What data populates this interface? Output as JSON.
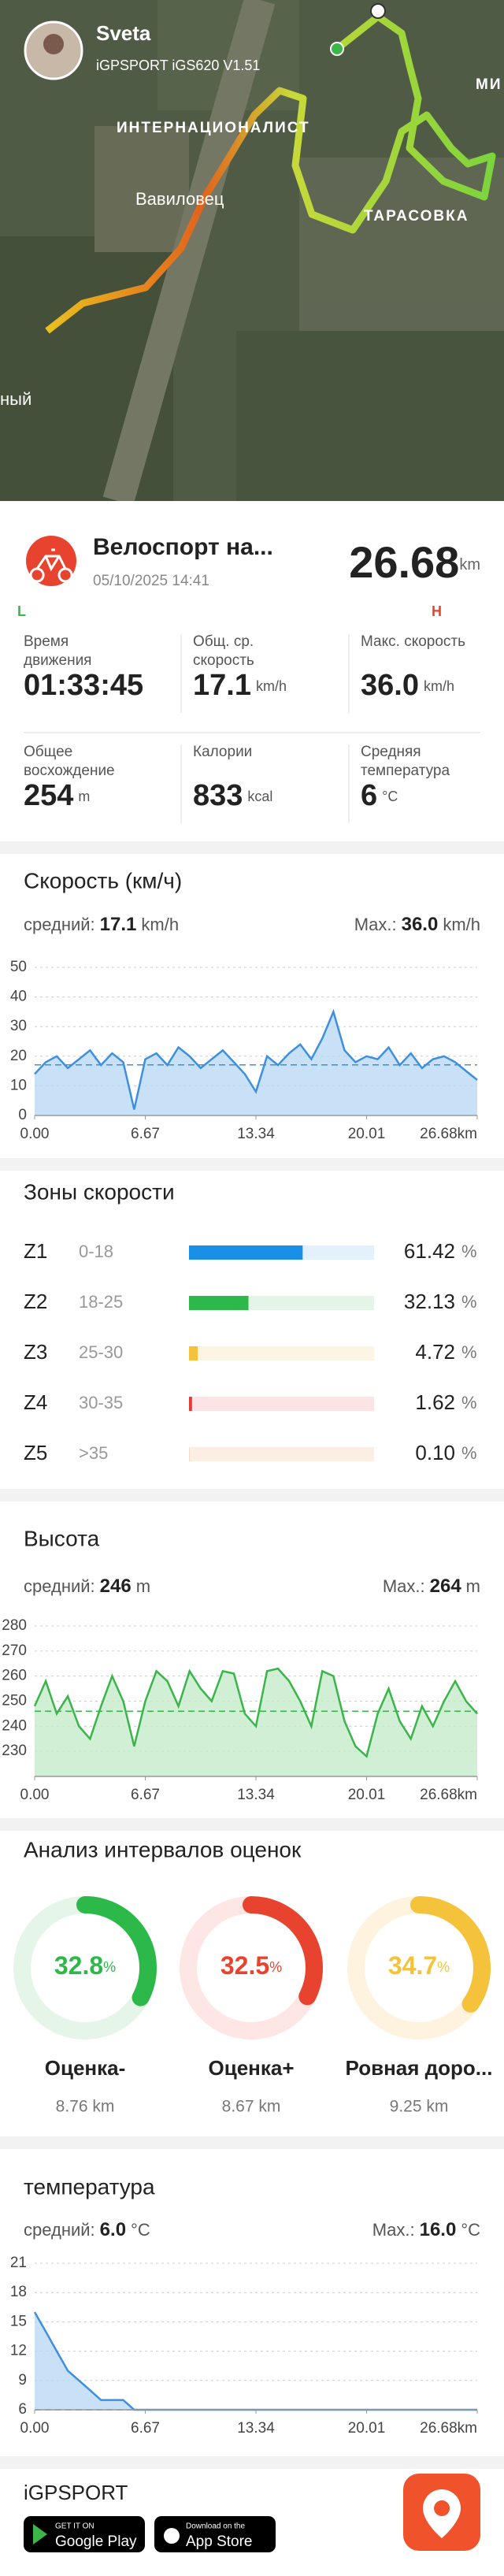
{
  "header": {
    "user": "Sveta",
    "device": "iGPSPORT iGS620 V1.51",
    "map_labels": [
      "ИНТЕРНАЦИОНАЛИСТ",
      "Вавиловец",
      "ТАРАСОВКА",
      "ный",
      "МИ"
    ]
  },
  "activity": {
    "title": "Велоспорт на...",
    "datetime": "05/10/2025 14:41",
    "distance": "26.68",
    "distance_unit": "km",
    "scale_left": "L",
    "scale_right": "H",
    "stats": [
      {
        "label": [
          "Время",
          "движения"
        ],
        "value": "01:33:45"
      },
      {
        "label": [
          "Общ. ср.",
          "скорость"
        ],
        "value": "17.1",
        "unit": "km/h"
      },
      {
        "label": [
          "Макс. скорость"
        ],
        "value": "36.0",
        "unit": "km/h"
      },
      {
        "label": [
          "Общее",
          "восхождение"
        ],
        "value": "254",
        "unit": "m"
      },
      {
        "label": [
          "Калории"
        ],
        "value": "833",
        "unit": "kcal"
      },
      {
        "label": [
          "Средняя",
          "температура"
        ],
        "value": "6",
        "unit": "°C"
      }
    ]
  },
  "chart_data": [
    {
      "type": "line",
      "title": "Скорость (км/ч)",
      "average_label": "средний:",
      "average": {
        "value": 17.1,
        "label": "17.1"
      },
      "max_label": "Max.:",
      "max": {
        "value": 36,
        "label": "36.0"
      },
      "unit": "km/h",
      "color": "#3d8fe0",
      "fill": "#bcd9f5",
      "x": [
        0,
        0.67,
        1.33,
        2,
        2.67,
        3.34,
        4,
        4.67,
        5.34,
        6,
        6.67,
        7.34,
        8,
        8.67,
        9.34,
        10.01,
        10.67,
        11.34,
        12.01,
        12.67,
        13.34,
        14.01,
        14.67,
        15.34,
        16.01,
        16.68,
        17.34,
        18.01,
        18.68,
        19.34,
        20.01,
        20.68,
        21.34,
        22.01,
        22.68,
        23.35,
        24.01,
        24.68,
        25.35,
        26.01,
        26.68
      ],
      "values": [
        14,
        18,
        20,
        16,
        19,
        22,
        17,
        21,
        18,
        2,
        19,
        21,
        17,
        23,
        20,
        16,
        19,
        22,
        18,
        14,
        8,
        20,
        17,
        21,
        24,
        19,
        26,
        35,
        22,
        18,
        20,
        19,
        23,
        17,
        21,
        16,
        19,
        20,
        18,
        15,
        12
      ],
      "xlim": [
        0,
        26.68
      ],
      "xticks": [
        {
          "value": 0,
          "label": "0.00"
        },
        6.67,
        13.34,
        20.01,
        {
          "value": 26.68,
          "label": "26.68km"
        }
      ],
      "ylim": [
        0,
        50
      ],
      "yticks": [
        0,
        10,
        20,
        30,
        40,
        50
      ],
      "grid": true
    },
    {
      "type": "hbar",
      "title": "Зоны скорости",
      "categories": [
        "Z1",
        "Z2",
        "Z3",
        "Z4",
        "Z5"
      ],
      "ranges": [
        "0-18",
        "18-25",
        "25-30",
        "30-35",
        ">35"
      ],
      "values": [
        61.42,
        32.13,
        4.72,
        1.62,
        0.1
      ],
      "value_labels": [
        "61.42",
        "32.13",
        "4.72",
        "1.62",
        "0.10"
      ],
      "unit": "%",
      "colors": [
        "#1a8fe8",
        "#2db84a",
        "#f5c33b",
        "#e53935",
        "#f29a5a"
      ],
      "track_colors": [
        "#e3f1fc",
        "#e4f5e8",
        "#fdf5e3",
        "#fce4e4",
        "#fdeee4"
      ],
      "xlim": [
        0,
        100
      ]
    },
    {
      "type": "line",
      "title": "Высота",
      "average_label": "средний:",
      "average": {
        "value": 246,
        "label": "246"
      },
      "max_label": "Max.:",
      "max": {
        "value": 264,
        "label": "264"
      },
      "unit": "m",
      "color": "#39b54a",
      "fill": "#c6ebc9",
      "x": [
        0,
        0.67,
        1.33,
        2,
        2.67,
        3.34,
        4,
        4.67,
        5.34,
        6,
        6.67,
        7.34,
        8,
        8.67,
        9.34,
        10.01,
        10.67,
        11.34,
        12.01,
        12.67,
        13.34,
        14.01,
        14.67,
        15.34,
        16.01,
        16.68,
        17.34,
        18.01,
        18.68,
        19.34,
        20.01,
        20.68,
        21.34,
        22.01,
        22.68,
        23.35,
        24.01,
        24.68,
        25.35,
        26.01,
        26.68
      ],
      "values": [
        248,
        258,
        245,
        252,
        240,
        235,
        248,
        260,
        250,
        232,
        250,
        262,
        258,
        248,
        262,
        255,
        250,
        262,
        261,
        245,
        240,
        262,
        263,
        258,
        250,
        240,
        262,
        260,
        242,
        232,
        228,
        245,
        255,
        242,
        235,
        248,
        240,
        250,
        258,
        250,
        245
      ],
      "xlim": [
        0,
        26.68
      ],
      "xticks": [
        {
          "value": 0,
          "label": "0.00"
        },
        6.67,
        13.34,
        20.01,
        {
          "value": 26.68,
          "label": "26.68km"
        }
      ],
      "ylim": [
        220,
        280
      ],
      "yticks": [
        230,
        240,
        250,
        260,
        270,
        280
      ],
      "grid": true
    },
    {
      "type": "donut",
      "title": "Анализ интервалов оценок",
      "categories": [
        "Оценка-",
        "Оценка+",
        "Ровная доро..."
      ],
      "values": [
        32.8,
        32.5,
        34.7
      ],
      "unit": "%",
      "distances": [
        "8.76 km",
        "8.67 km",
        "9.25 km"
      ],
      "colors": [
        "#2db84a",
        "#e8432e",
        "#f5c33b"
      ],
      "track_colors": [
        "#e5f5e8",
        "#fde6e3",
        "#fdf3de"
      ],
      "range": [
        0,
        100
      ]
    },
    {
      "type": "line",
      "title": "температура",
      "average_label": "средний:",
      "average": {
        "value": 6,
        "label": "6.0"
      },
      "max_label": "Max.:",
      "max": {
        "value": 16,
        "label": "16.0"
      },
      "unit": "°C",
      "color": "#3d8fe0",
      "fill": "#bcd9f5",
      "x": [
        0,
        0.67,
        1.33,
        2,
        2.67,
        3.34,
        4,
        4.67,
        5.34,
        6,
        6.67,
        7.34,
        8,
        8.67,
        9.34,
        10.01,
        10.67,
        11.34,
        12.01,
        12.67,
        13.34,
        14.01,
        14.67,
        15.34,
        16.01,
        16.68,
        17.34,
        18.01,
        18.68,
        19.34,
        20.01,
        20.68,
        21.34,
        22.01,
        22.68,
        23.35,
        24.01,
        24.68,
        25.35,
        26.01,
        26.68
      ],
      "values": [
        16,
        14,
        12,
        10,
        9,
        8,
        7,
        7,
        7,
        6,
        6,
        6,
        6,
        6,
        6,
        6,
        6,
        6,
        6,
        6,
        6,
        6,
        6,
        6,
        6,
        6,
        6,
        6,
        6,
        6,
        6,
        6,
        6,
        6,
        6,
        6,
        6,
        6,
        6,
        6,
        6
      ],
      "xlim": [
        0,
        26.68
      ],
      "xticks": [
        {
          "value": 0,
          "label": "0.00"
        },
        6.67,
        13.34,
        20.01,
        {
          "value": 26.68,
          "label": "26.68km"
        }
      ],
      "ylim": [
        6,
        21
      ],
      "yticks": [
        6,
        9,
        12,
        15,
        18,
        21
      ],
      "grid": true
    }
  ],
  "footer": {
    "brand": "iGPSPORT",
    "google_top": "GET IT ON",
    "google": "Google Play",
    "apple_top": "Download on the",
    "apple": "App Store"
  }
}
